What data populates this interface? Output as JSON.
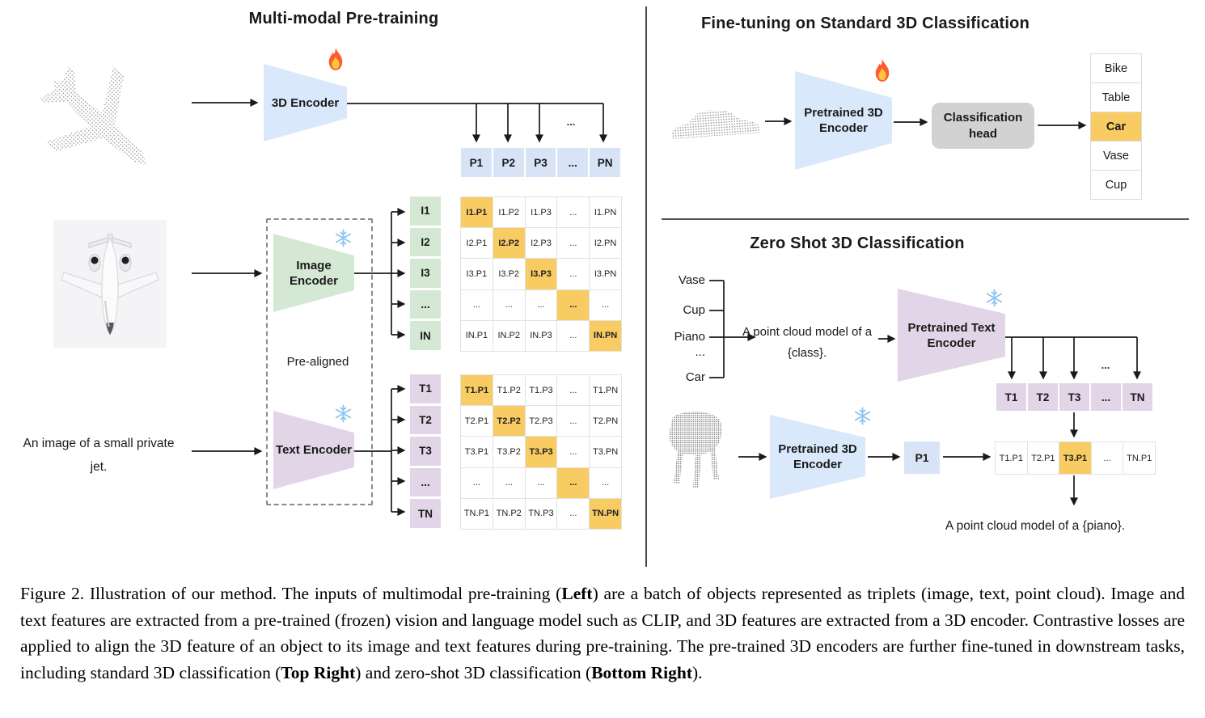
{
  "figure": {
    "left": {
      "title": "Multi-modal Pre-training",
      "input_text": "An image of a small private jet.",
      "encoder_3d_label": "3D Encoder",
      "pre_aligned": "Pre-aligned",
      "image_encoder_label": "Image Encoder",
      "text_encoder_label": "Text Encoder",
      "ellipsis": "...",
      "p_row": [
        "P1",
        "P2",
        "P3",
        "...",
        "PN"
      ],
      "i_labels": [
        "I1",
        "I2",
        "I3",
        "...",
        "IN"
      ],
      "i_matrix": [
        [
          "I1.P1",
          "I1.P2",
          "I1.P3",
          "...",
          "I1.PN"
        ],
        [
          "I2.P1",
          "I2.P2",
          "I2.P3",
          "...",
          "I2.PN"
        ],
        [
          "I3.P1",
          "I3.P2",
          "I3.P3",
          "...",
          "I3.PN"
        ],
        [
          "...",
          "...",
          "...",
          "...",
          "..."
        ],
        [
          "IN.P1",
          "IN.P2",
          "IN.P3",
          "...",
          "IN.PN"
        ]
      ],
      "t_labels": [
        "T1",
        "T2",
        "T3",
        "...",
        "TN"
      ],
      "t_matrix": [
        [
          "T1.P1",
          "T1.P2",
          "T1.P3",
          "...",
          "T1.PN"
        ],
        [
          "T2.P1",
          "T2.P2",
          "T2.P3",
          "...",
          "T2.PN"
        ],
        [
          "T3.P1",
          "T3.P2",
          "T3.P3",
          "...",
          "T3.PN"
        ],
        [
          "...",
          "...",
          "...",
          "...",
          "..."
        ],
        [
          "TN.P1",
          "TN.P2",
          "TN.P3",
          "...",
          "TN.PN"
        ]
      ]
    },
    "top_right": {
      "title": "Fine-tuning on Standard 3D Classification",
      "encoder_label": "Pretrained 3D Encoder",
      "head_label": "Classification head",
      "classes": [
        "Bike",
        "Table",
        "Car",
        "Vase",
        "Cup"
      ],
      "predicted_class": "Car"
    },
    "bottom_right": {
      "title": "Zero Shot 3D Classification",
      "class_candidates": [
        "Vase",
        "Cup",
        "Piano",
        "...",
        "Car"
      ],
      "prompt": "A point cloud model of a {class}.",
      "text_encoder_label": "Pretrained Text Encoder",
      "encoder_3d_label": "Pretrained 3D Encoder",
      "t_row": [
        "T1",
        "T2",
        "T3",
        "...",
        "TN"
      ],
      "p_feature": "P1",
      "similarity_row": [
        "T1.P1",
        "T2.P1",
        "T3.P1",
        "...",
        "TN.P1"
      ],
      "matched_cell": "T3.P1",
      "result": "A point cloud model of a {piano}.",
      "ellipsis": "..."
    },
    "icons": {
      "fire": "flame = trainable",
      "snowflake": "snowflake = frozen"
    },
    "colors": {
      "encoder_blue": "#DAE8FC",
      "encoder_green": "#D5E8D4",
      "encoder_purple": "#E1D5E7",
      "highlight_orange": "#F8CB63",
      "head_gray": "#D2D2D2"
    }
  },
  "caption": {
    "segments": [
      {
        "text": "Figure 2. Illustration of our method.  The inputs of multimodal pre-training (",
        "bold": false
      },
      {
        "text": "Left",
        "bold": true
      },
      {
        "text": ") are a batch of objects represented as triplets (image, text, point cloud).  Image and text features are extracted from a pre-trained (frozen) vision and language model such as CLIP, and 3D features are extracted from a 3D encoder.  Contrastive losses are applied to align the 3D feature of an object to its image and text features during pre-training.  The pre-trained 3D encoders are further fine-tuned in downstream tasks, including standard 3D classification (",
        "bold": false
      },
      {
        "text": "Top Right",
        "bold": true
      },
      {
        "text": ") and zero-shot 3D classification (",
        "bold": false
      },
      {
        "text": "Bottom Right",
        "bold": true
      },
      {
        "text": ").",
        "bold": false
      }
    ]
  }
}
